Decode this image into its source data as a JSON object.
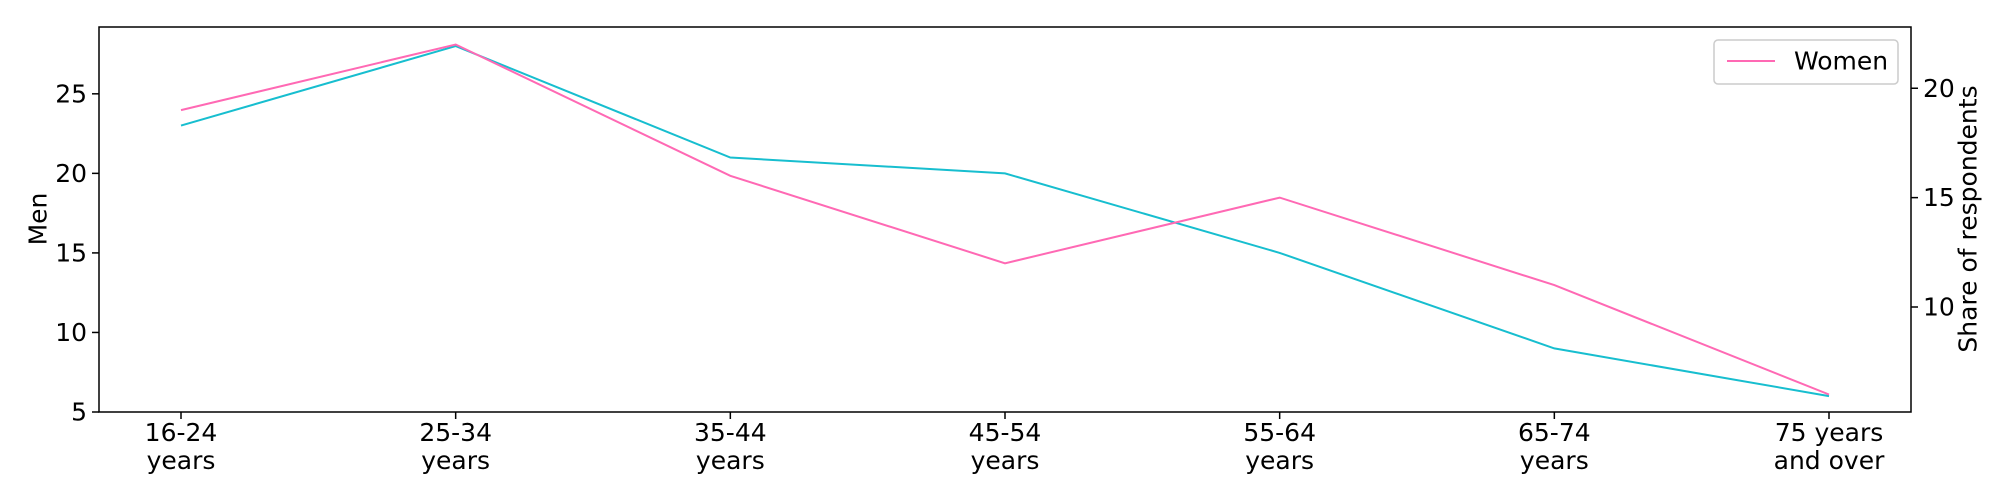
{
  "chart_data": {
    "type": "line",
    "categories": [
      [
        "16-24",
        "years"
      ],
      [
        "25-34",
        "years"
      ],
      [
        "35-44",
        "years"
      ],
      [
        "45-54",
        "years"
      ],
      [
        "55-64",
        "years"
      ],
      [
        "65-74",
        "years"
      ],
      [
        "75 years",
        "and over"
      ]
    ],
    "series": [
      {
        "axis": "left",
        "color": "#17becf",
        "values": [
          23,
          28,
          21,
          20,
          15,
          9,
          6
        ]
      },
      {
        "name": "Women",
        "axis": "right",
        "color": "#ff69b4",
        "values": [
          19,
          22,
          16,
          12,
          15,
          11,
          6
        ]
      }
    ],
    "ylabel": "Men",
    "y2label": "Share of respondents",
    "ylim": [
      5,
      29.2
    ],
    "y2lim": [
      5.2,
      22.8
    ],
    "yticks": [
      5,
      10,
      15,
      20,
      25
    ],
    "y2ticks": [
      10,
      15,
      20
    ],
    "grid": false,
    "legend_position": "top-right"
  }
}
